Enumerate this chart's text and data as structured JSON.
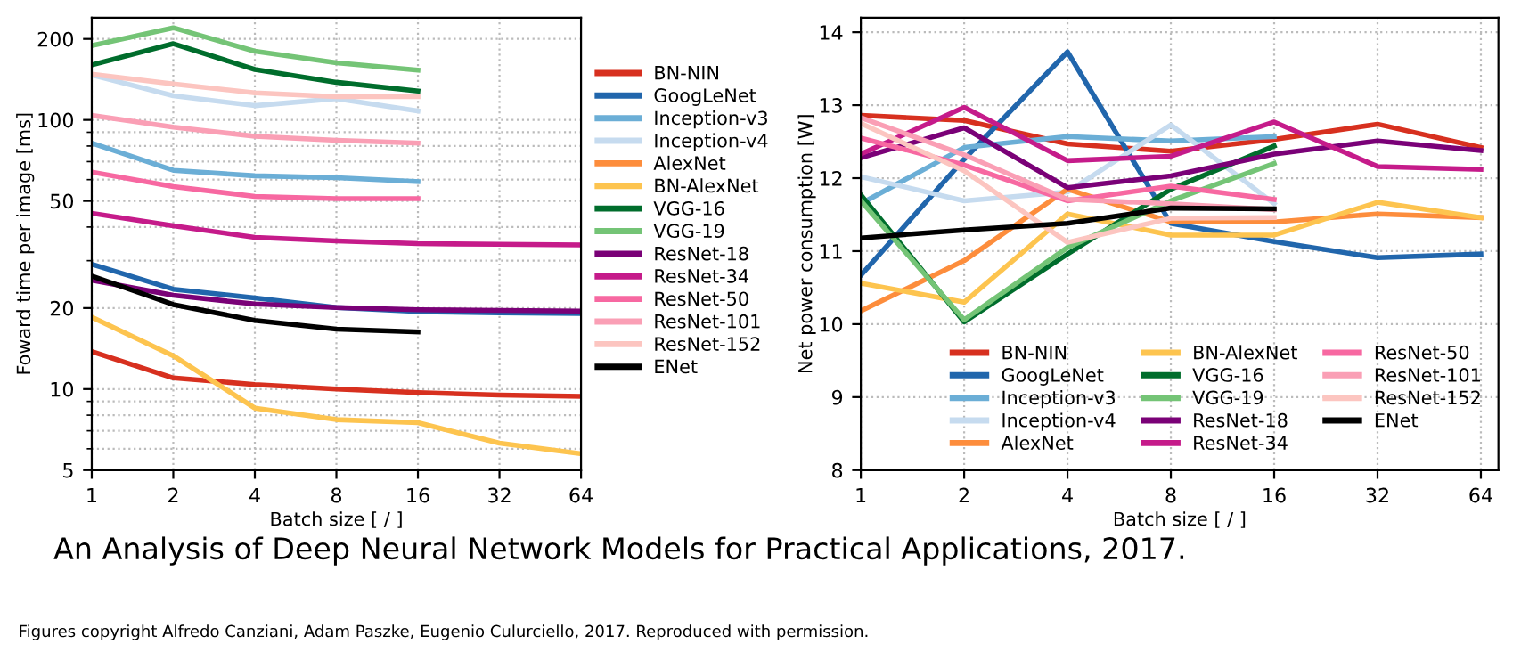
{
  "chart_data": [
    {
      "type": "line",
      "xlabel": "Batch size [ / ]",
      "ylabel": "Foward time per image [ms]",
      "log": "xy",
      "grid": true,
      "legend": "right",
      "x": [
        1,
        2,
        4,
        8,
        16,
        32,
        64
      ],
      "xlim": [
        1,
        64
      ],
      "xticks": [
        1,
        2,
        4,
        8,
        16,
        32,
        64
      ],
      "ylim": [
        5,
        240
      ],
      "yticks": [
        5,
        10,
        20,
        50,
        100,
        200
      ],
      "series": [
        {
          "name": "BN-NIN",
          "color": "#d7301f",
          "values": [
            13.8,
            11.0,
            10.4,
            10.0,
            9.7,
            9.5,
            9.4
          ]
        },
        {
          "name": "GoogLeNet",
          "color": "#2166ac",
          "values": [
            29.1,
            23.5,
            21.8,
            20.1,
            19.4,
            19.2,
            19.1
          ]
        },
        {
          "name": "Inception-v3",
          "color": "#6baed6",
          "values": [
            82,
            65,
            62,
            61,
            59,
            null,
            null
          ]
        },
        {
          "name": "Inception-v4",
          "color": "#c6dbef",
          "values": [
            147,
            123,
            113,
            120,
            108,
            null,
            null
          ]
        },
        {
          "name": "AlexNet",
          "color": "#fd8d3c",
          "values": [
            null,
            null,
            null,
            null,
            null,
            null,
            null
          ]
        },
        {
          "name": "BN-AlexNet",
          "color": "#fdc44f",
          "values": [
            18.5,
            13.3,
            8.5,
            7.7,
            7.5,
            6.3,
            5.75
          ]
        },
        {
          "name": "VGG-16",
          "color": "#006d2c",
          "values": [
            160,
            192,
            154,
            138,
            128,
            null,
            null
          ]
        },
        {
          "name": "VGG-19",
          "color": "#74c476",
          "values": [
            189,
            220,
            180,
            163,
            153,
            null,
            null
          ]
        },
        {
          "name": "ResNet-18",
          "color": "#7a0177",
          "values": [
            25.4,
            22.3,
            20.7,
            20.1,
            19.7,
            19.6,
            19.5
          ]
        },
        {
          "name": "ResNet-34",
          "color": "#c51b8a",
          "values": [
            45,
            40.4,
            36.6,
            35.5,
            34.7,
            34.5,
            34.3
          ]
        },
        {
          "name": "ResNet-50",
          "color": "#f768a1",
          "values": [
            64,
            56.5,
            52,
            51,
            51,
            null,
            null
          ]
        },
        {
          "name": "ResNet-101",
          "color": "#fa9fb5",
          "values": [
            104,
            94,
            87,
            84,
            82,
            null,
            null
          ]
        },
        {
          "name": "ResNet-152",
          "color": "#fcc5c0",
          "values": [
            148,
            136,
            126,
            122,
            122,
            null,
            null
          ]
        },
        {
          "name": "ENet",
          "color": "#000000",
          "values": [
            26.3,
            20.6,
            18.0,
            16.7,
            16.3,
            null,
            null
          ]
        }
      ],
      "annotations": [
        "An Analysis of Deep Neural Network Models for Practical Applications, 2017.",
        "Figures copyright Alfredo Canziani, Adam Paszke, Eugenio Culurciello, 2017. Reproduced with permission."
      ]
    },
    {
      "type": "line",
      "xlabel": "Batch size [ / ]",
      "ylabel": "Net power consumption [W]",
      "log": "x",
      "grid": true,
      "legend": "bottom right",
      "x": [
        1,
        2,
        4,
        8,
        16,
        32,
        64
      ],
      "xlim": [
        1,
        72
      ],
      "xticks": [
        1,
        2,
        4,
        8,
        16,
        32,
        64
      ],
      "ylim": [
        8,
        14.2
      ],
      "yticks": [
        8,
        9,
        10,
        11,
        12,
        13,
        14
      ],
      "series": [
        {
          "name": "BN-NIN",
          "color": "#d7301f",
          "values": [
            12.86,
            12.79,
            12.47,
            12.37,
            12.53,
            12.74,
            12.42
          ]
        },
        {
          "name": "GoogLeNet",
          "color": "#2166ac",
          "values": [
            10.67,
            12.26,
            13.73,
            11.38,
            11.13,
            10.91,
            10.96
          ]
        },
        {
          "name": "Inception-v3",
          "color": "#6baed6",
          "values": [
            11.65,
            12.42,
            12.57,
            12.51,
            12.57,
            null,
            null
          ]
        },
        {
          "name": "Inception-v4",
          "color": "#c6dbef",
          "values": [
            12.02,
            11.69,
            11.81,
            12.73,
            11.65,
            null,
            null
          ]
        },
        {
          "name": "AlexNet",
          "color": "#fd8d3c",
          "values": [
            10.18,
            10.87,
            11.85,
            11.4,
            11.4,
            11.51,
            11.46
          ]
        },
        {
          "name": "BN-AlexNet",
          "color": "#fdc44f",
          "values": [
            10.56,
            10.3,
            11.51,
            11.22,
            11.22,
            11.67,
            11.46
          ]
        },
        {
          "name": "VGG-16",
          "color": "#006d2c",
          "values": [
            11.77,
            10.03,
            10.96,
            11.85,
            12.44,
            null,
            null
          ]
        },
        {
          "name": "VGG-19",
          "color": "#74c476",
          "values": [
            11.69,
            10.06,
            11.05,
            11.69,
            12.2,
            null,
            null
          ]
        },
        {
          "name": "ResNet-18",
          "color": "#7a0177",
          "values": [
            12.28,
            12.69,
            11.87,
            12.03,
            12.33,
            12.51,
            12.38
          ]
        },
        {
          "name": "ResNet-34",
          "color": "#c51b8a",
          "values": [
            12.33,
            12.97,
            12.24,
            12.3,
            12.77,
            12.16,
            12.12
          ]
        },
        {
          "name": "ResNet-50",
          "color": "#f768a1",
          "values": [
            12.55,
            12.18,
            11.69,
            11.89,
            11.71,
            null,
            null
          ]
        },
        {
          "name": "ResNet-101",
          "color": "#fa9fb5",
          "values": [
            12.83,
            12.32,
            11.71,
            11.65,
            11.57,
            null,
            null
          ]
        },
        {
          "name": "ResNet-152",
          "color": "#fcc5c0",
          "values": [
            12.75,
            12.1,
            11.12,
            11.45,
            11.46,
            null,
            null
          ]
        },
        {
          "name": "ENet",
          "color": "#000000",
          "values": [
            11.18,
            11.29,
            11.38,
            11.59,
            11.58,
            null,
            null
          ]
        }
      ]
    }
  ]
}
